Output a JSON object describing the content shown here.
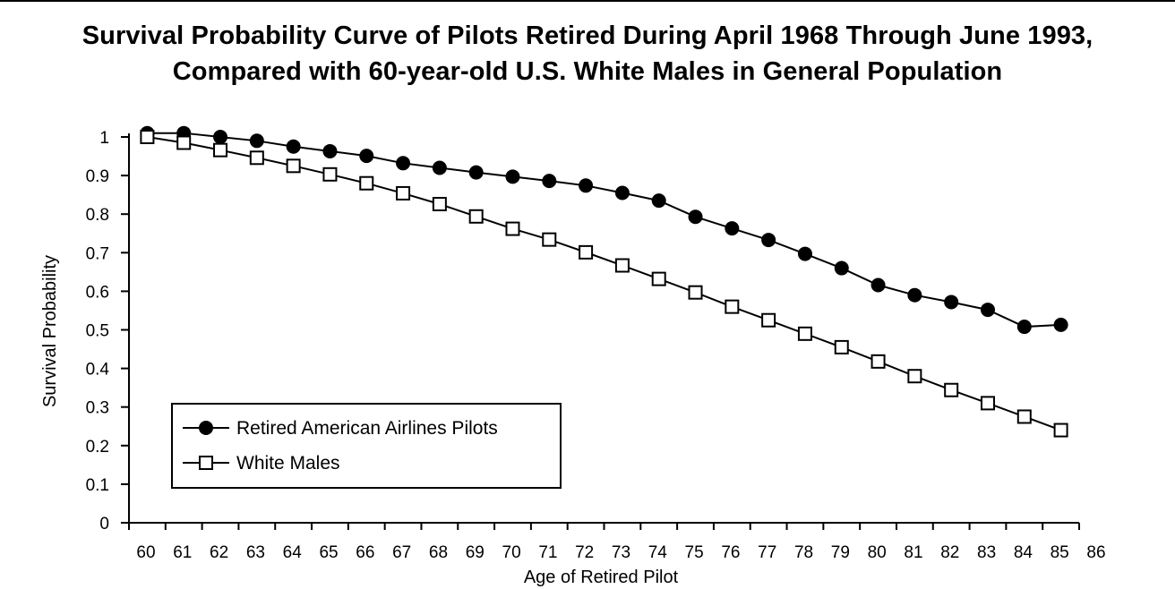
{
  "chart_data": {
    "type": "line",
    "title_line1": "Survival Probability Curve of Pilots Retired During April 1968 Through June 1993,",
    "title_line2": "Compared with 60-year-old U.S. White Males in General Population",
    "xlabel": "Age of Retired Pilot",
    "ylabel": "Survival Probability",
    "xlim": [
      60,
      86
    ],
    "ylim": [
      0,
      1
    ],
    "x_ticks": [
      "60",
      "61",
      "62",
      "63",
      "64",
      "65",
      "66",
      "67",
      "68",
      "69",
      "70",
      "71",
      "72",
      "73",
      "74",
      "75",
      "76",
      "77",
      "78",
      "79",
      "80",
      "81",
      "82",
      "83",
      "84",
      "85",
      "86"
    ],
    "y_ticks": [
      "0",
      "0.1",
      "0.2",
      "0.3",
      "0.4",
      "0.5",
      "0.6",
      "0.7",
      "0.8",
      "0.9",
      "1"
    ],
    "legend_position": "bottom-left",
    "series": [
      {
        "name": "Retired American Airlines Pilots",
        "marker": "filled-circle",
        "x": [
          60,
          61,
          62,
          63,
          64,
          65,
          66,
          67,
          68,
          69,
          70,
          71,
          72,
          73,
          74,
          75,
          76,
          77,
          78,
          79,
          80,
          81,
          82,
          83,
          84,
          85
        ],
        "values": [
          1.01,
          1.01,
          1.0,
          0.99,
          0.975,
          0.963,
          0.951,
          0.932,
          0.92,
          0.908,
          0.897,
          0.886,
          0.874,
          0.855,
          0.835,
          0.793,
          0.763,
          0.733,
          0.697,
          0.66,
          0.616,
          0.59,
          0.572,
          0.552,
          0.508,
          0.513
        ]
      },
      {
        "name": "White Males",
        "marker": "open-square",
        "x": [
          60,
          61,
          62,
          63,
          64,
          65,
          66,
          67,
          68,
          69,
          70,
          71,
          72,
          73,
          74,
          75,
          76,
          77,
          78,
          79,
          80,
          81,
          82,
          83,
          84,
          85
        ],
        "values": [
          1.0,
          0.985,
          0.966,
          0.946,
          0.925,
          0.903,
          0.88,
          0.854,
          0.826,
          0.794,
          0.762,
          0.734,
          0.701,
          0.667,
          0.632,
          0.597,
          0.56,
          0.525,
          0.49,
          0.455,
          0.418,
          0.38,
          0.344,
          0.31,
          0.275,
          0.24
        ]
      }
    ]
  }
}
